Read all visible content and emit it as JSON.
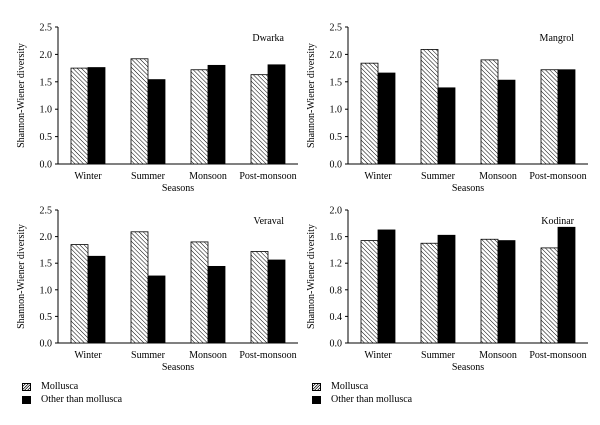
{
  "legend": {
    "mollusca": "Mollusca",
    "other": "Other than mollusca"
  },
  "chart_data": [
    {
      "type": "bar",
      "title": "Dwarka",
      "xlabel": "Seasons",
      "ylabel": "Shannon-Wiener diversity",
      "categories": [
        "Winter",
        "Summer",
        "Monsoon",
        "Post-monsoon"
      ],
      "ylim": [
        0,
        2.5
      ],
      "yticks": [
        "0.0",
        "0.5",
        "1.0",
        "1.5",
        "2.0",
        "2.5"
      ],
      "series": [
        {
          "name": "Mollusca",
          "values": [
            1.75,
            1.92,
            1.72,
            1.63
          ]
        },
        {
          "name": "Other than mollusca",
          "values": [
            1.76,
            1.54,
            1.8,
            1.81
          ]
        }
      ]
    },
    {
      "type": "bar",
      "title": "Mangrol",
      "xlabel": "Seasons",
      "ylabel": "Shannon-Wiener diversity",
      "categories": [
        "Winter",
        "Summer",
        "Monsoon",
        "Post-monsoon"
      ],
      "ylim": [
        0,
        2.5
      ],
      "yticks": [
        "0.0",
        "0.5",
        "1.0",
        "1.5",
        "2.0",
        "2.5"
      ],
      "series": [
        {
          "name": "Mollusca",
          "values": [
            1.84,
            2.09,
            1.9,
            1.72
          ]
        },
        {
          "name": "Other than mollusca",
          "values": [
            1.66,
            1.39,
            1.53,
            1.72
          ]
        }
      ]
    },
    {
      "type": "bar",
      "title": "Veraval",
      "xlabel": "Seasons",
      "ylabel": "Shannon-Wiener diversity",
      "categories": [
        "Winter",
        "Summer",
        "Monsoon",
        "Post-monsoon"
      ],
      "ylim": [
        0,
        2.5
      ],
      "yticks": [
        "0.0",
        "0.5",
        "1.0",
        "1.5",
        "2.0",
        "2.5"
      ],
      "series": [
        {
          "name": "Mollusca",
          "values": [
            1.85,
            2.09,
            1.9,
            1.72
          ]
        },
        {
          "name": "Other than mollusca",
          "values": [
            1.63,
            1.26,
            1.44,
            1.56
          ]
        }
      ]
    },
    {
      "type": "bar",
      "title": "Kodinar",
      "xlabel": "Seasons",
      "ylabel": "Shannon-Wiener diversity",
      "categories": [
        "Winter",
        "Summer",
        "Monsoon",
        "Post-monsoon"
      ],
      "ylim": [
        0,
        2.0
      ],
      "yticks": [
        "0.0",
        "0.4",
        "0.8",
        "1.2",
        "1.6",
        "2.0"
      ],
      "series": [
        {
          "name": "Mollusca",
          "values": [
            1.54,
            1.5,
            1.56,
            1.43
          ]
        },
        {
          "name": "Other than mollusca",
          "values": [
            1.7,
            1.62,
            1.54,
            1.74
          ]
        }
      ]
    }
  ]
}
